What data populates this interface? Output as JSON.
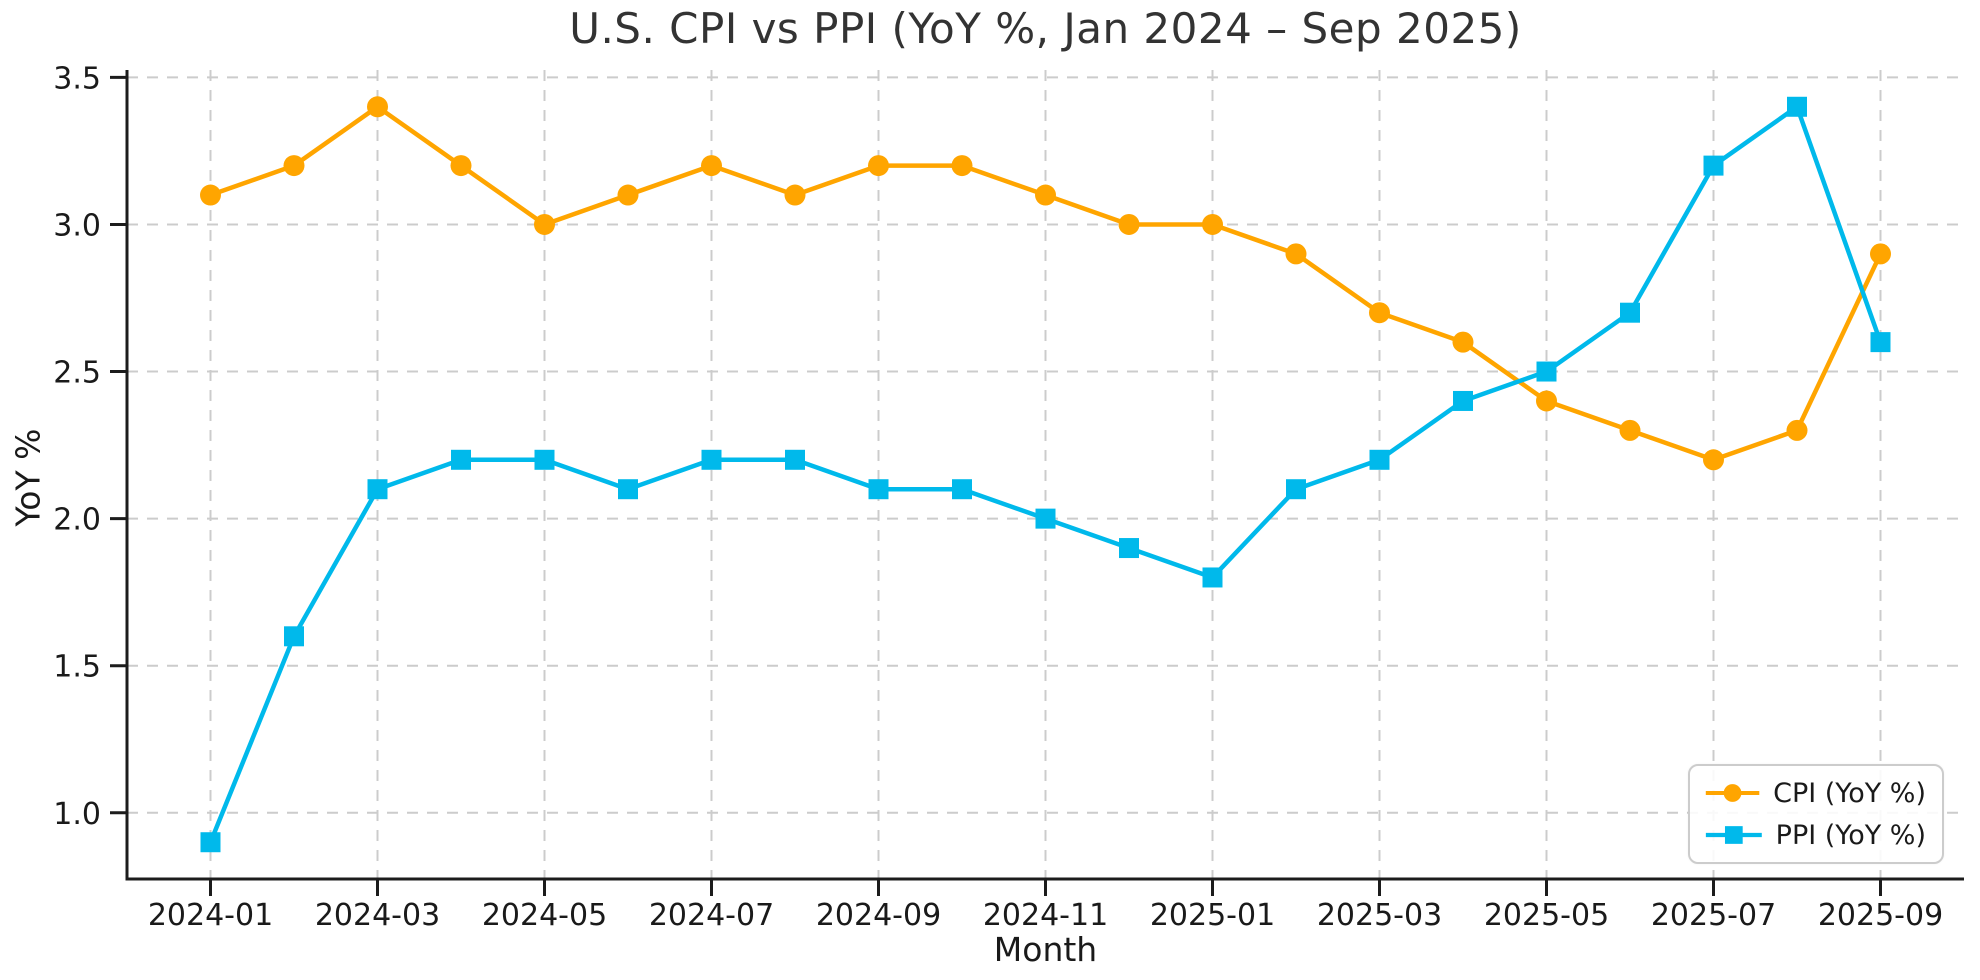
{
  "chart_data": {
    "type": "line",
    "title": "U.S. CPI vs PPI (YoY %, Jan 2024 – Sep 2025)",
    "xlabel": "Month",
    "ylabel": "YoY %",
    "categories": [
      "2024-01",
      "2024-02",
      "2024-03",
      "2024-04",
      "2024-05",
      "2024-06",
      "2024-07",
      "2024-08",
      "2024-09",
      "2024-10",
      "2024-11",
      "2024-12",
      "2025-01",
      "2025-02",
      "2025-03",
      "2025-04",
      "2025-05",
      "2025-06",
      "2025-07",
      "2025-08",
      "2025-09"
    ],
    "series": [
      {
        "name": "CPI (YoY %)",
        "slug": "cpi",
        "color": "#FFA500",
        "marker": "circle",
        "values": [
          3.1,
          3.2,
          3.4,
          3.2,
          3.0,
          3.1,
          3.2,
          3.1,
          3.2,
          3.2,
          3.1,
          3.0,
          3.0,
          2.9,
          2.7,
          2.6,
          2.4,
          2.3,
          2.2,
          2.3,
          2.9
        ]
      },
      {
        "name": "PPI (YoY %)",
        "slug": "ppi",
        "color": "#00B9EB",
        "marker": "square",
        "values": [
          0.9,
          1.6,
          2.1,
          2.2,
          2.2,
          2.1,
          2.2,
          2.2,
          2.1,
          2.1,
          2.0,
          1.9,
          1.8,
          2.1,
          2.2,
          2.4,
          2.5,
          2.7,
          3.2,
          3.4,
          2.6
        ]
      }
    ],
    "xtick_indices": [
      0,
      2,
      4,
      6,
      8,
      10,
      12,
      14,
      16,
      18,
      20
    ],
    "xtick_labels": [
      "2024-01",
      "2024-03",
      "2024-05",
      "2024-07",
      "2024-09",
      "2024-11",
      "2025-01",
      "2025-03",
      "2025-05",
      "2025-07",
      "2025-09"
    ],
    "ytick_values": [
      1.0,
      1.5,
      2.0,
      2.5,
      3.0,
      3.5
    ],
    "ytick_labels": [
      "1.0",
      "1.5",
      "2.0",
      "2.5",
      "3.0",
      "3.5"
    ],
    "xlim": [
      -1,
      21
    ],
    "ylim": [
      0.775,
      3.525
    ],
    "grid": {
      "show": true,
      "style": "dashed",
      "color": "#cccccc"
    },
    "axis_color": "#1c1c1c",
    "legend_position": "lower right"
  }
}
